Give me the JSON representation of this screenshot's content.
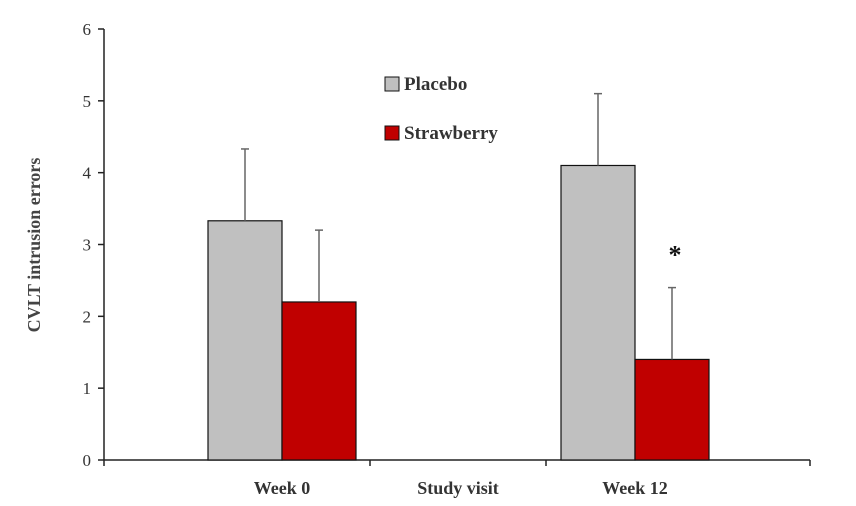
{
  "chart_data": {
    "type": "bar",
    "categories": [
      "Week 0",
      "Study visit",
      "Week 12"
    ],
    "series": [
      {
        "name": "Placebo",
        "color": "#c0c0c0",
        "values": [
          3.33,
          null,
          4.1
        ],
        "errors": [
          1.0,
          null,
          1.0
        ]
      },
      {
        "name": "Strawberry",
        "color": "#c00000",
        "values": [
          2.2,
          null,
          1.4
        ],
        "errors": [
          1.0,
          null,
          1.0
        ]
      }
    ],
    "xlabel": "",
    "ylabel": "CVLT intrusion errors",
    "ylim": [
      0,
      6
    ],
    "yticks": [
      "0",
      "1",
      "2",
      "3",
      "4",
      "5",
      "6"
    ],
    "grid": false,
    "legend_position": "top-center",
    "annotations": [
      {
        "text": "*",
        "category": "Week 12",
        "series": "Strawberry"
      }
    ]
  }
}
